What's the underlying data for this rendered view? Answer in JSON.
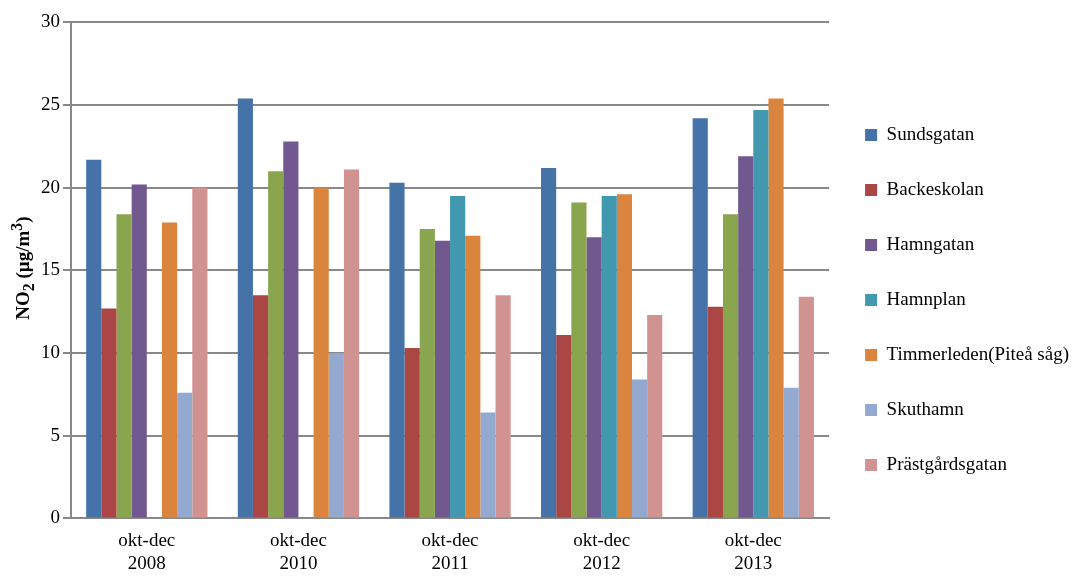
{
  "chart_data": {
    "type": "bar",
    "ylabel": "NO$_{2}$ (µg/m$^{3}$)",
    "categories": [
      "okt-dec 2008",
      "okt-dec 2010",
      "okt-dec 2011",
      "okt-dec 2012",
      "okt-dec 2013"
    ],
    "ylim": [
      0,
      30
    ],
    "yticks": [
      0,
      5,
      10,
      15,
      20,
      25,
      30
    ],
    "grid": "y",
    "legend": "right",
    "series": [
      {
        "name": "Sundsgatan",
        "color": "#4572a7",
        "values": [
          21.7,
          25.4,
          20.3,
          21.2,
          24.2
        ]
      },
      {
        "name": "Backeskolan",
        "color": "#aa4643",
        "values": [
          12.7,
          13.5,
          10.3,
          11.1,
          12.8
        ]
      },
      {
        "color": "#89a54e",
        "values": [
          18.4,
          21.0,
          17.5,
          19.1,
          18.4
        ]
      },
      {
        "name": "Hamngatan",
        "color": "#71588f",
        "values": [
          20.2,
          22.8,
          16.8,
          17.0,
          21.9
        ]
      },
      {
        "name": "Hamnplan",
        "color": "#4198af",
        "values": [
          null,
          null,
          19.5,
          19.5,
          24.7
        ]
      },
      {
        "name": "Timmerleden(Piteå såg)",
        "color": "#db843d",
        "values": [
          17.9,
          20.0,
          17.1,
          19.6,
          25.4
        ]
      },
      {
        "name": "Skuthamn",
        "color": "#93a9cf",
        "values": [
          7.6,
          10.0,
          6.4,
          8.4,
          7.9
        ]
      },
      {
        "name": "Prästgårdsgatan",
        "color": "#d19392",
        "values": [
          20.0,
          21.1,
          13.5,
          12.3,
          13.4
        ]
      }
    ]
  }
}
